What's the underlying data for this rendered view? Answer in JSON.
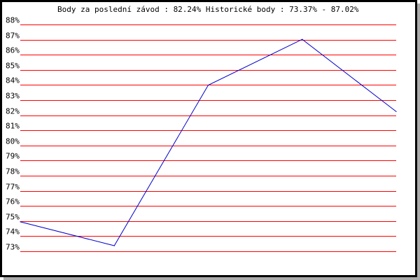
{
  "chart_data": {
    "type": "line",
    "title": "Body za poslední závod : 82.24%  Historické body : 73.37% - 87.02%",
    "xlabel": "",
    "ylabel": "",
    "ylim": [
      73,
      88
    ],
    "y_ticks": [
      "73%",
      "74%",
      "75%",
      "76%",
      "77%",
      "78%",
      "79%",
      "80%",
      "81%",
      "82%",
      "83%",
      "84%",
      "85%",
      "86%",
      "87%",
      "88%"
    ],
    "grid": true,
    "series": [
      {
        "values": [
          74.95,
          73.37,
          83.99,
          87.02,
          82.24
        ]
      }
    ],
    "colors": {
      "line": "#0000cc",
      "grid": "#ff0000",
      "frame": "#000000",
      "shadow": "#aaaaaa"
    }
  }
}
